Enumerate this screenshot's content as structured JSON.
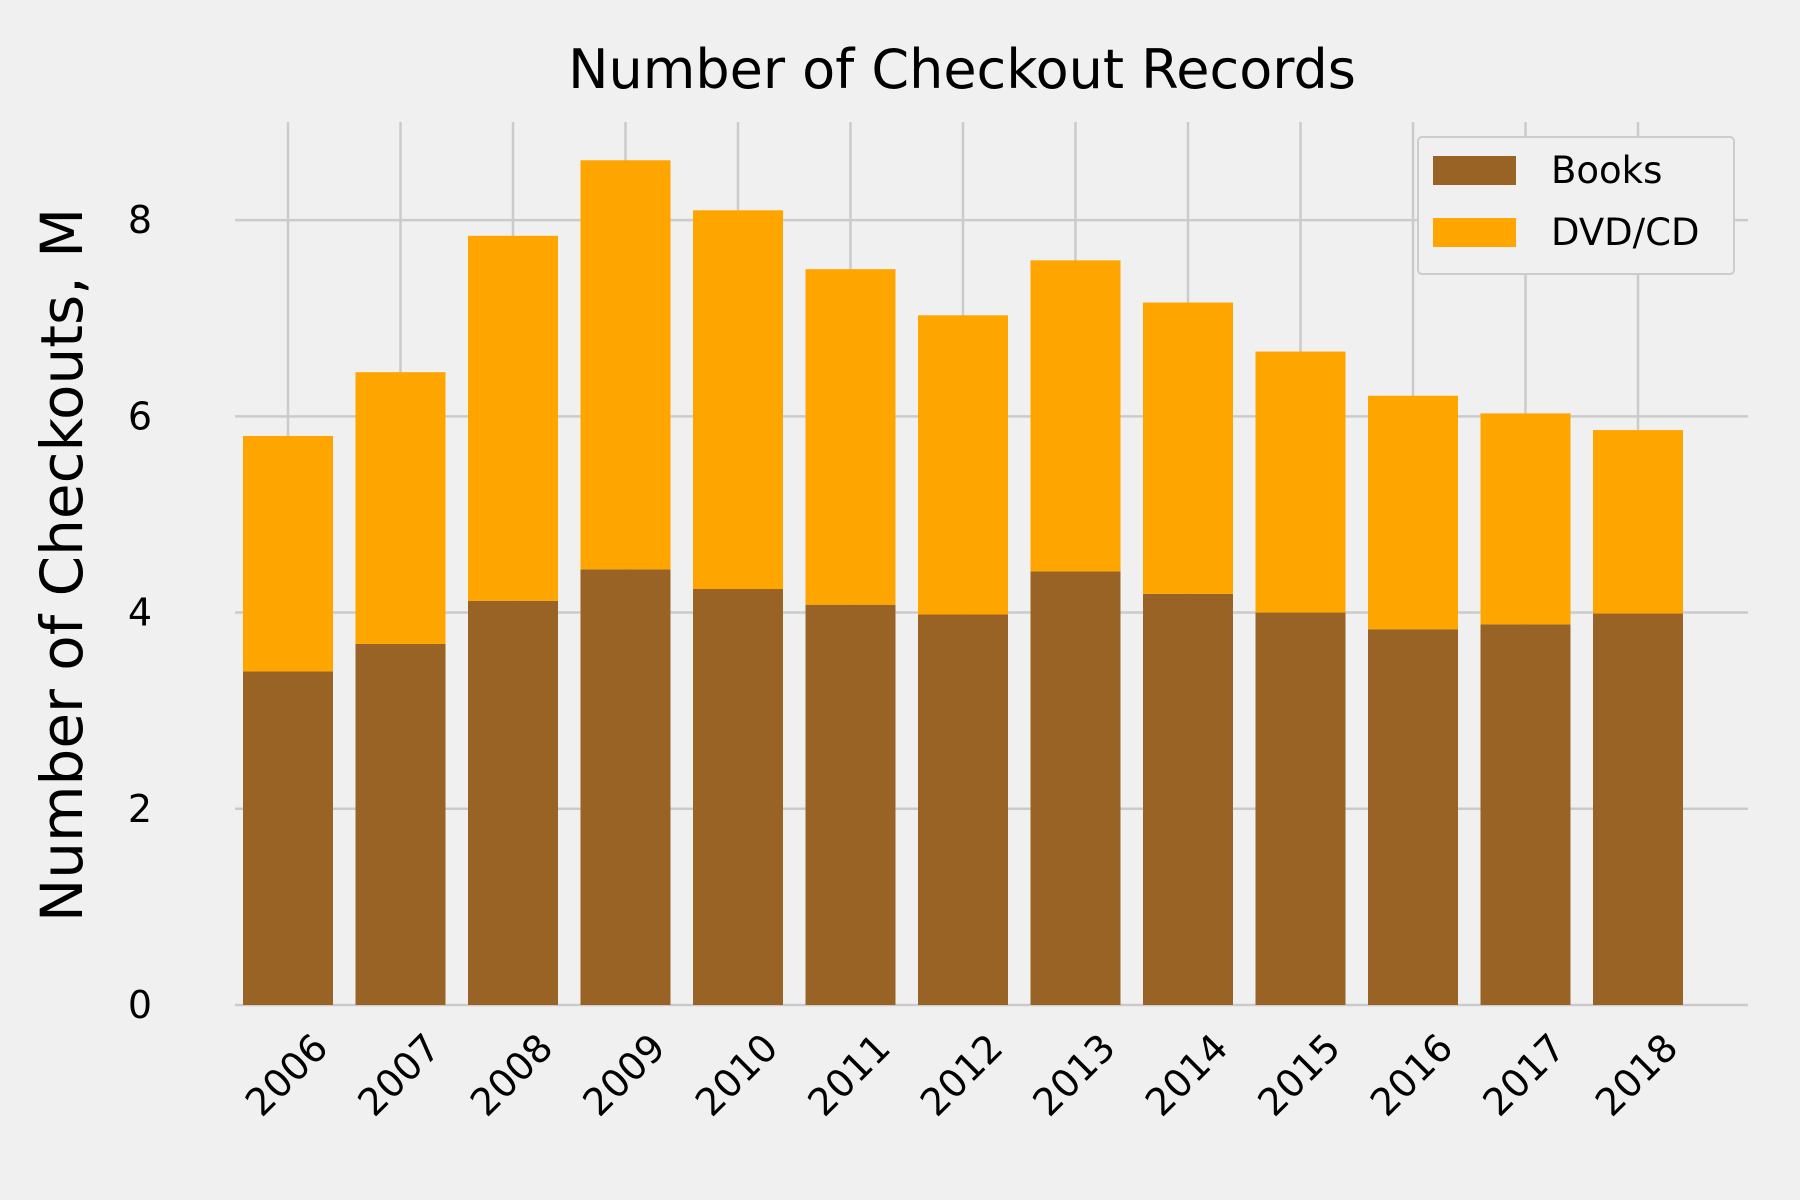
{
  "chart_data": {
    "type": "bar",
    "stacked": true,
    "title": "Number of Checkout Records",
    "xlabel": "",
    "ylabel": "Number of Checkouts, M",
    "categories": [
      "2006",
      "2007",
      "2008",
      "2009",
      "2010",
      "2011",
      "2012",
      "2013",
      "2014",
      "2015",
      "2016",
      "2017",
      "2018"
    ],
    "series": [
      {
        "name": "Books",
        "color": "#996326",
        "values": [
          3.4,
          3.68,
          4.12,
          4.44,
          4.24,
          4.08,
          3.98,
          4.42,
          4.19,
          4.0,
          3.83,
          3.88,
          3.99
        ]
      },
      {
        "name": "DVD/CD",
        "color": "#ffa500",
        "values": [
          2.4,
          2.77,
          3.72,
          4.17,
          3.86,
          3.42,
          3.05,
          3.17,
          2.97,
          2.66,
          2.38,
          2.15,
          1.87
        ]
      }
    ],
    "ylim": [
      0,
      9.0
    ],
    "yticks": [
      0,
      2,
      4,
      6,
      8
    ],
    "grid": true,
    "legend_position": "top-right",
    "background": "#f0f0f0",
    "grid_color": "#cbcbcb"
  }
}
